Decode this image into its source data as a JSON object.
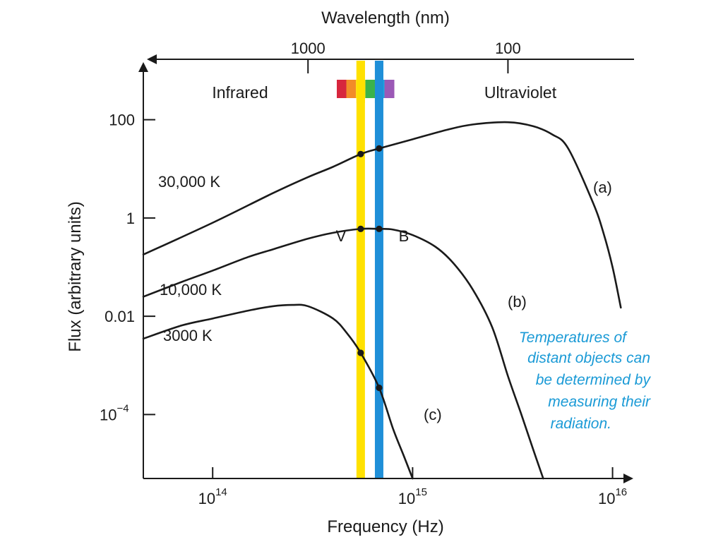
{
  "chart_data": {
    "type": "line",
    "title": "",
    "top_axis": {
      "label": "Wavelength (nm)",
      "ticks": [
        {
          "value": 1000,
          "label": "1000"
        },
        {
          "value": 100,
          "label": "100"
        }
      ]
    },
    "xlabel": "Frequency (Hz)",
    "ylabel": "Flux (arbitrary units)",
    "x_scale": "log",
    "y_scale": "log",
    "xlim": [
      45000000000000.0,
      1.2e+16
    ],
    "ylim": [
      5e-06,
      1000
    ],
    "x_ticks": [
      {
        "value": 100000000000000.0,
        "base": "10",
        "exp": "14"
      },
      {
        "value": 1000000000000000.0,
        "base": "10",
        "exp": "15"
      },
      {
        "value": 1e+16,
        "base": "10",
        "exp": "16"
      }
    ],
    "y_ticks": [
      {
        "value": 100,
        "base": "100",
        "exp": ""
      },
      {
        "value": 1,
        "base": "1",
        "exp": ""
      },
      {
        "value": 0.01,
        "base": "0.01",
        "exp": ""
      },
      {
        "value": 0.0001,
        "base": "10",
        "exp": "−4"
      }
    ],
    "regions": {
      "left": "Infrared",
      "right": "Ultraviolet"
    },
    "spectrum_colors": [
      "#d7263d",
      "#f28c28",
      "#fbe122",
      "#3bb34a",
      "#1ba9e1",
      "#9b59b6"
    ],
    "filters": [
      {
        "name": "V",
        "frequency": 550000000000000.0,
        "color": "#ffe100"
      },
      {
        "name": "B",
        "frequency": 680000000000000.0,
        "color": "#1f8fd8"
      }
    ],
    "series": [
      {
        "name": "30,000 K",
        "tag": "(a)",
        "points": [
          [
            45000000000000.0,
            0.18
          ],
          [
            100000000000000.0,
            0.8
          ],
          [
            200000000000000.0,
            3.2
          ],
          [
            300000000000000.0,
            6.8
          ],
          [
            400000000000000.0,
            11
          ],
          [
            550000000000000.0,
            20
          ],
          [
            680000000000000.0,
            26
          ],
          [
            1000000000000000.0,
            40
          ],
          [
            1500000000000000.0,
            63
          ],
          [
            2000000000000000.0,
            80
          ],
          [
            3000000000000000.0,
            89
          ],
          [
            4000000000000000.0,
            74
          ],
          [
            5000000000000000.0,
            50
          ],
          [
            6000000000000000.0,
            26
          ],
          [
            8000000000000000.0,
            2
          ],
          [
            9000000000000000.0,
            0.5
          ],
          [
            1e+16,
            0.1
          ],
          [
            1.1e+16,
            0.015
          ]
        ]
      },
      {
        "name": "10,000 K",
        "tag": "(b)",
        "points": [
          [
            45000000000000.0,
            0.025
          ],
          [
            70000000000000.0,
            0.05
          ],
          [
            100000000000000.0,
            0.085
          ],
          [
            150000000000000.0,
            0.16
          ],
          [
            200000000000000.0,
            0.23
          ],
          [
            300000000000000.0,
            0.38
          ],
          [
            400000000000000.0,
            0.5
          ],
          [
            550000000000000.0,
            0.6
          ],
          [
            680000000000000.0,
            0.6
          ],
          [
            800000000000000.0,
            0.58
          ],
          [
            1000000000000000.0,
            0.45
          ],
          [
            1300000000000000.0,
            0.26
          ],
          [
            1600000000000000.0,
            0.12
          ],
          [
            2000000000000000.0,
            0.035
          ],
          [
            2500000000000000.0,
            0.006
          ],
          [
            3000000000000000.0,
            0.0006
          ],
          [
            3500000000000000.0,
            0.0001
          ],
          [
            4000000000000000.0,
            2e-05
          ],
          [
            4500000000000000.0,
            5e-06
          ]
        ]
      },
      {
        "name": "3000 K",
        "tag": "(c)",
        "points": [
          [
            45000000000000.0,
            0.0035
          ],
          [
            70000000000000.0,
            0.0065
          ],
          [
            100000000000000.0,
            0.009
          ],
          [
            150000000000000.0,
            0.013
          ],
          [
            200000000000000.0,
            0.016
          ],
          [
            250000000000000.0,
            0.017
          ],
          [
            300000000000000.0,
            0.016
          ],
          [
            400000000000000.0,
            0.009
          ],
          [
            470000000000000.0,
            0.0045
          ],
          [
            550000000000000.0,
            0.0018
          ],
          [
            680000000000000.0,
            0.00035
          ],
          [
            800000000000000.0,
            5e-05
          ],
          [
            900000000000000.0,
            1.5e-05
          ],
          [
            1000000000000000.0,
            5e-06
          ]
        ]
      }
    ],
    "dots": [
      {
        "series": 0,
        "x": 550000000000000.0,
        "y": 20
      },
      {
        "series": 0,
        "x": 680000000000000.0,
        "y": 26
      },
      {
        "series": 1,
        "x": 550000000000000.0,
        "y": 0.6
      },
      {
        "series": 1,
        "x": 680000000000000.0,
        "y": 0.6
      },
      {
        "series": 2,
        "x": 550000000000000.0,
        "y": 0.0018
      },
      {
        "series": 2,
        "x": 680000000000000.0,
        "y": 0.00035
      }
    ],
    "annotation": {
      "lines": [
        "Temperatures of",
        "distant objects can",
        "be determined by",
        "measuring their",
        "radiation."
      ],
      "color": "#1a9ad6"
    },
    "grid": false
  }
}
